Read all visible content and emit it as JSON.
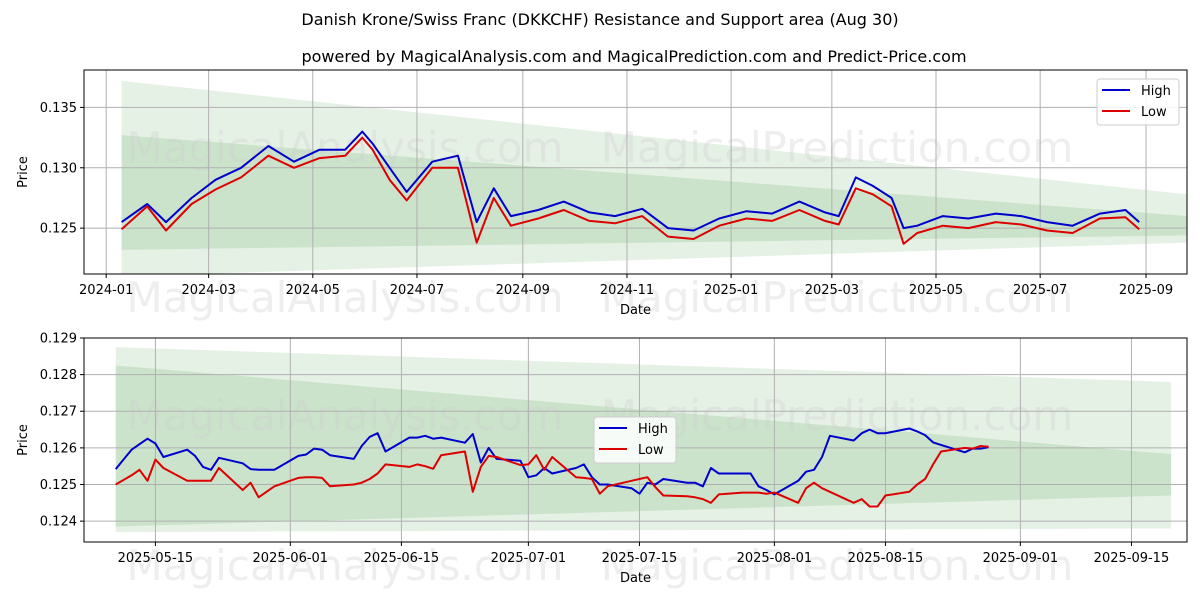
{
  "title": "Danish Krone/Swiss Franc (DKKCHF) Resistance and Support area (Aug 30)",
  "subtitle": "powered by MagicalAnalysis.com and MagicalPrediction.com and Predict-Price.com",
  "watermarks": [
    "MagicalAnalysis.com",
    "MagicalPrediction.com"
  ],
  "colors": {
    "high": "#0000cc",
    "low": "#dd0000",
    "band": "#2e8b2e",
    "grid": "#b0b0b0"
  },
  "chart_data": [
    {
      "type": "line",
      "xlabel": "Date",
      "ylabel": "Price",
      "grid": true,
      "legend": "top-right",
      "xlim": [
        "2023-12-19",
        "2025-09-25"
      ],
      "ylim": [
        0.1212,
        0.1381
      ],
      "x_ticks": [
        "2024-01",
        "2024-03",
        "2024-05",
        "2024-07",
        "2024-09",
        "2024-11",
        "2025-01",
        "2025-03",
        "2025-05",
        "2025-07",
        "2025-09"
      ],
      "y_ticks": [
        0.125,
        0.13,
        0.135
      ],
      "y_tick_labels": [
        "0.125",
        "0.130",
        "0.135"
      ],
      "bands": [
        {
          "x": [
            "2024-01-10",
            "2025-09-25"
          ],
          "upper": [
            0.1372,
            0.1278
          ],
          "lower": [
            0.121,
            0.1238
          ],
          "opacity": 0.12
        },
        {
          "x": [
            "2024-01-10",
            "2025-09-25"
          ],
          "upper": [
            0.1327,
            0.126
          ],
          "lower": [
            0.1232,
            0.1244
          ],
          "opacity": 0.14
        }
      ],
      "x": [
        "2024-01-10",
        "2024-01-25",
        "2024-02-05",
        "2024-02-20",
        "2024-03-05",
        "2024-03-20",
        "2024-04-05",
        "2024-04-20",
        "2024-05-05",
        "2024-05-20",
        "2024-05-30",
        "2024-06-05",
        "2024-06-15",
        "2024-06-25",
        "2024-07-10",
        "2024-07-25",
        "2024-08-05",
        "2024-08-15",
        "2024-08-25",
        "2024-09-10",
        "2024-09-25",
        "2024-10-10",
        "2024-10-25",
        "2024-11-10",
        "2024-11-25",
        "2024-12-10",
        "2024-12-25",
        "2025-01-10",
        "2025-01-25",
        "2025-02-10",
        "2025-02-25",
        "2025-03-05",
        "2025-03-15",
        "2025-03-25",
        "2025-04-05",
        "2025-04-12",
        "2025-04-20",
        "2025-05-05",
        "2025-05-20",
        "2025-06-05",
        "2025-06-20",
        "2025-07-05",
        "2025-07-20",
        "2025-08-05",
        "2025-08-20",
        "2025-08-28"
      ],
      "series": [
        {
          "name": "High",
          "values": [
            0.1255,
            0.127,
            0.1255,
            0.1275,
            0.129,
            0.13,
            0.1318,
            0.1305,
            0.1315,
            0.1315,
            0.133,
            0.132,
            0.13,
            0.128,
            0.1305,
            0.131,
            0.1255,
            0.1283,
            0.126,
            0.1265,
            0.1272,
            0.1263,
            0.126,
            0.1266,
            0.125,
            0.1248,
            0.1258,
            0.1264,
            0.1262,
            0.1272,
            0.1263,
            0.126,
            0.1292,
            0.1285,
            0.1275,
            0.125,
            0.1252,
            0.126,
            0.1258,
            0.1262,
            0.126,
            0.1255,
            0.1252,
            0.1262,
            0.1265,
            0.1255
          ]
        },
        {
          "name": "Low",
          "values": [
            0.1249,
            0.1268,
            0.1248,
            0.127,
            0.1282,
            0.1292,
            0.131,
            0.13,
            0.1308,
            0.131,
            0.1325,
            0.1315,
            0.129,
            0.1273,
            0.13,
            0.13,
            0.1238,
            0.1275,
            0.1252,
            0.1258,
            0.1265,
            0.1256,
            0.1254,
            0.126,
            0.1243,
            0.1241,
            0.1252,
            0.1258,
            0.1256,
            0.1265,
            0.1256,
            0.1253,
            0.1283,
            0.1278,
            0.1268,
            0.1237,
            0.1246,
            0.1252,
            0.125,
            0.1255,
            0.1253,
            0.1248,
            0.1246,
            0.1258,
            0.1259,
            0.1249
          ]
        }
      ]
    },
    {
      "type": "line",
      "xlabel": "Date",
      "ylabel": "Price",
      "grid": true,
      "legend": "center",
      "xlim": [
        "2025-05-06",
        "2025-09-22"
      ],
      "ylim": [
        0.12343,
        0.129
      ],
      "x_ticks": [
        "2025-05-15",
        "2025-06-01",
        "2025-06-15",
        "2025-07-01",
        "2025-07-15",
        "2025-08-01",
        "2025-08-15",
        "2025-09-01",
        "2025-09-15"
      ],
      "y_ticks": [
        0.124,
        0.125,
        0.126,
        0.127,
        0.128,
        0.129
      ],
      "y_tick_labels": [
        "0.124",
        "0.125",
        "0.126",
        "0.127",
        "0.128",
        "0.129"
      ],
      "bands": [
        {
          "x": [
            "2025-05-10",
            "2025-09-20"
          ],
          "upper": [
            0.12875,
            0.1278
          ],
          "lower": [
            0.1237,
            0.1238
          ],
          "opacity": 0.12
        },
        {
          "x": [
            "2025-05-10",
            "2025-09-20"
          ],
          "upper": [
            0.12825,
            0.12583
          ],
          "lower": [
            0.12385,
            0.1247
          ],
          "opacity": 0.14
        }
      ],
      "x": [
        "2025-05-10",
        "2025-05-12",
        "2025-05-13",
        "2025-05-14",
        "2025-05-15",
        "2025-05-16",
        "2025-05-19",
        "2025-05-20",
        "2025-05-21",
        "2025-05-22",
        "2025-05-23",
        "2025-05-26",
        "2025-05-27",
        "2025-05-28",
        "2025-05-29",
        "2025-05-30",
        "2025-06-02",
        "2025-06-03",
        "2025-06-04",
        "2025-06-05",
        "2025-06-06",
        "2025-06-09",
        "2025-06-10",
        "2025-06-11",
        "2025-06-12",
        "2025-06-13",
        "2025-06-16",
        "2025-06-17",
        "2025-06-18",
        "2025-06-19",
        "2025-06-20",
        "2025-06-23",
        "2025-06-24",
        "2025-06-25",
        "2025-06-26",
        "2025-06-27",
        "2025-06-30",
        "2025-07-01",
        "2025-07-02",
        "2025-07-03",
        "2025-07-04",
        "2025-07-07",
        "2025-07-08",
        "2025-07-09",
        "2025-07-10",
        "2025-07-11",
        "2025-07-14",
        "2025-07-15",
        "2025-07-16",
        "2025-07-17",
        "2025-07-18",
        "2025-07-21",
        "2025-07-22",
        "2025-07-23",
        "2025-07-24",
        "2025-07-25",
        "2025-07-28",
        "2025-07-29",
        "2025-07-30",
        "2025-07-31",
        "2025-08-01",
        "2025-08-04",
        "2025-08-05",
        "2025-08-06",
        "2025-08-07",
        "2025-08-08",
        "2025-08-11",
        "2025-08-12",
        "2025-08-13",
        "2025-08-14",
        "2025-08-15",
        "2025-08-18",
        "2025-08-19",
        "2025-08-20",
        "2025-08-21",
        "2025-08-22",
        "2025-08-25",
        "2025-08-26",
        "2025-08-27",
        "2025-08-28"
      ],
      "series": [
        {
          "name": "High",
          "values": [
            0.12542,
            0.12595,
            0.1261,
            0.12625,
            0.12612,
            0.12575,
            0.12595,
            0.12578,
            0.12548,
            0.1254,
            0.12573,
            0.12558,
            0.12542,
            0.1254,
            0.1254,
            0.1254,
            0.12578,
            0.12582,
            0.12598,
            0.12595,
            0.1258,
            0.1257,
            0.12605,
            0.1263,
            0.1264,
            0.1259,
            0.12628,
            0.12628,
            0.12633,
            0.12625,
            0.12628,
            0.12614,
            0.12638,
            0.1256,
            0.126,
            0.1257,
            0.12565,
            0.1252,
            0.12525,
            0.12545,
            0.1253,
            0.12545,
            0.12555,
            0.1252,
            0.125,
            0.125,
            0.1249,
            0.12475,
            0.12505,
            0.125,
            0.12515,
            0.12505,
            0.12505,
            0.12495,
            0.12545,
            0.1253,
            0.1253,
            0.1253,
            0.12495,
            0.12485,
            0.12473,
            0.1251,
            0.12535,
            0.1254,
            0.12575,
            0.12633,
            0.1262,
            0.1264,
            0.1265,
            0.1264,
            0.1264,
            0.12653,
            0.12645,
            0.12635,
            0.12615,
            0.12608,
            0.12588,
            0.12598,
            0.12598,
            0.12602
          ]
        },
        {
          "name": "Low",
          "values": [
            0.125,
            0.12525,
            0.1254,
            0.1251,
            0.12568,
            0.12545,
            0.1251,
            0.1251,
            0.1251,
            0.1251,
            0.12545,
            0.12485,
            0.12505,
            0.12465,
            0.1248,
            0.12495,
            0.12518,
            0.1252,
            0.1252,
            0.12518,
            0.12495,
            0.125,
            0.12505,
            0.12515,
            0.1253,
            0.12555,
            0.12548,
            0.12555,
            0.1255,
            0.12543,
            0.1258,
            0.1259,
            0.1248,
            0.12548,
            0.12578,
            0.12575,
            0.12553,
            0.12555,
            0.1258,
            0.1254,
            0.12575,
            0.1252,
            0.12518,
            0.12515,
            0.12475,
            0.12495,
            0.1251,
            0.12515,
            0.1252,
            0.12493,
            0.1247,
            0.12468,
            0.12465,
            0.1246,
            0.1245,
            0.12473,
            0.12478,
            0.12478,
            0.12478,
            0.12475,
            0.12478,
            0.1245,
            0.1249,
            0.12505,
            0.1249,
            0.1248,
            0.1245,
            0.1246,
            0.1244,
            0.1244,
            0.1247,
            0.1248,
            0.125,
            0.12515,
            0.12555,
            0.1259,
            0.126,
            0.12598,
            0.12605,
            0.12603
          ]
        }
      ]
    }
  ]
}
